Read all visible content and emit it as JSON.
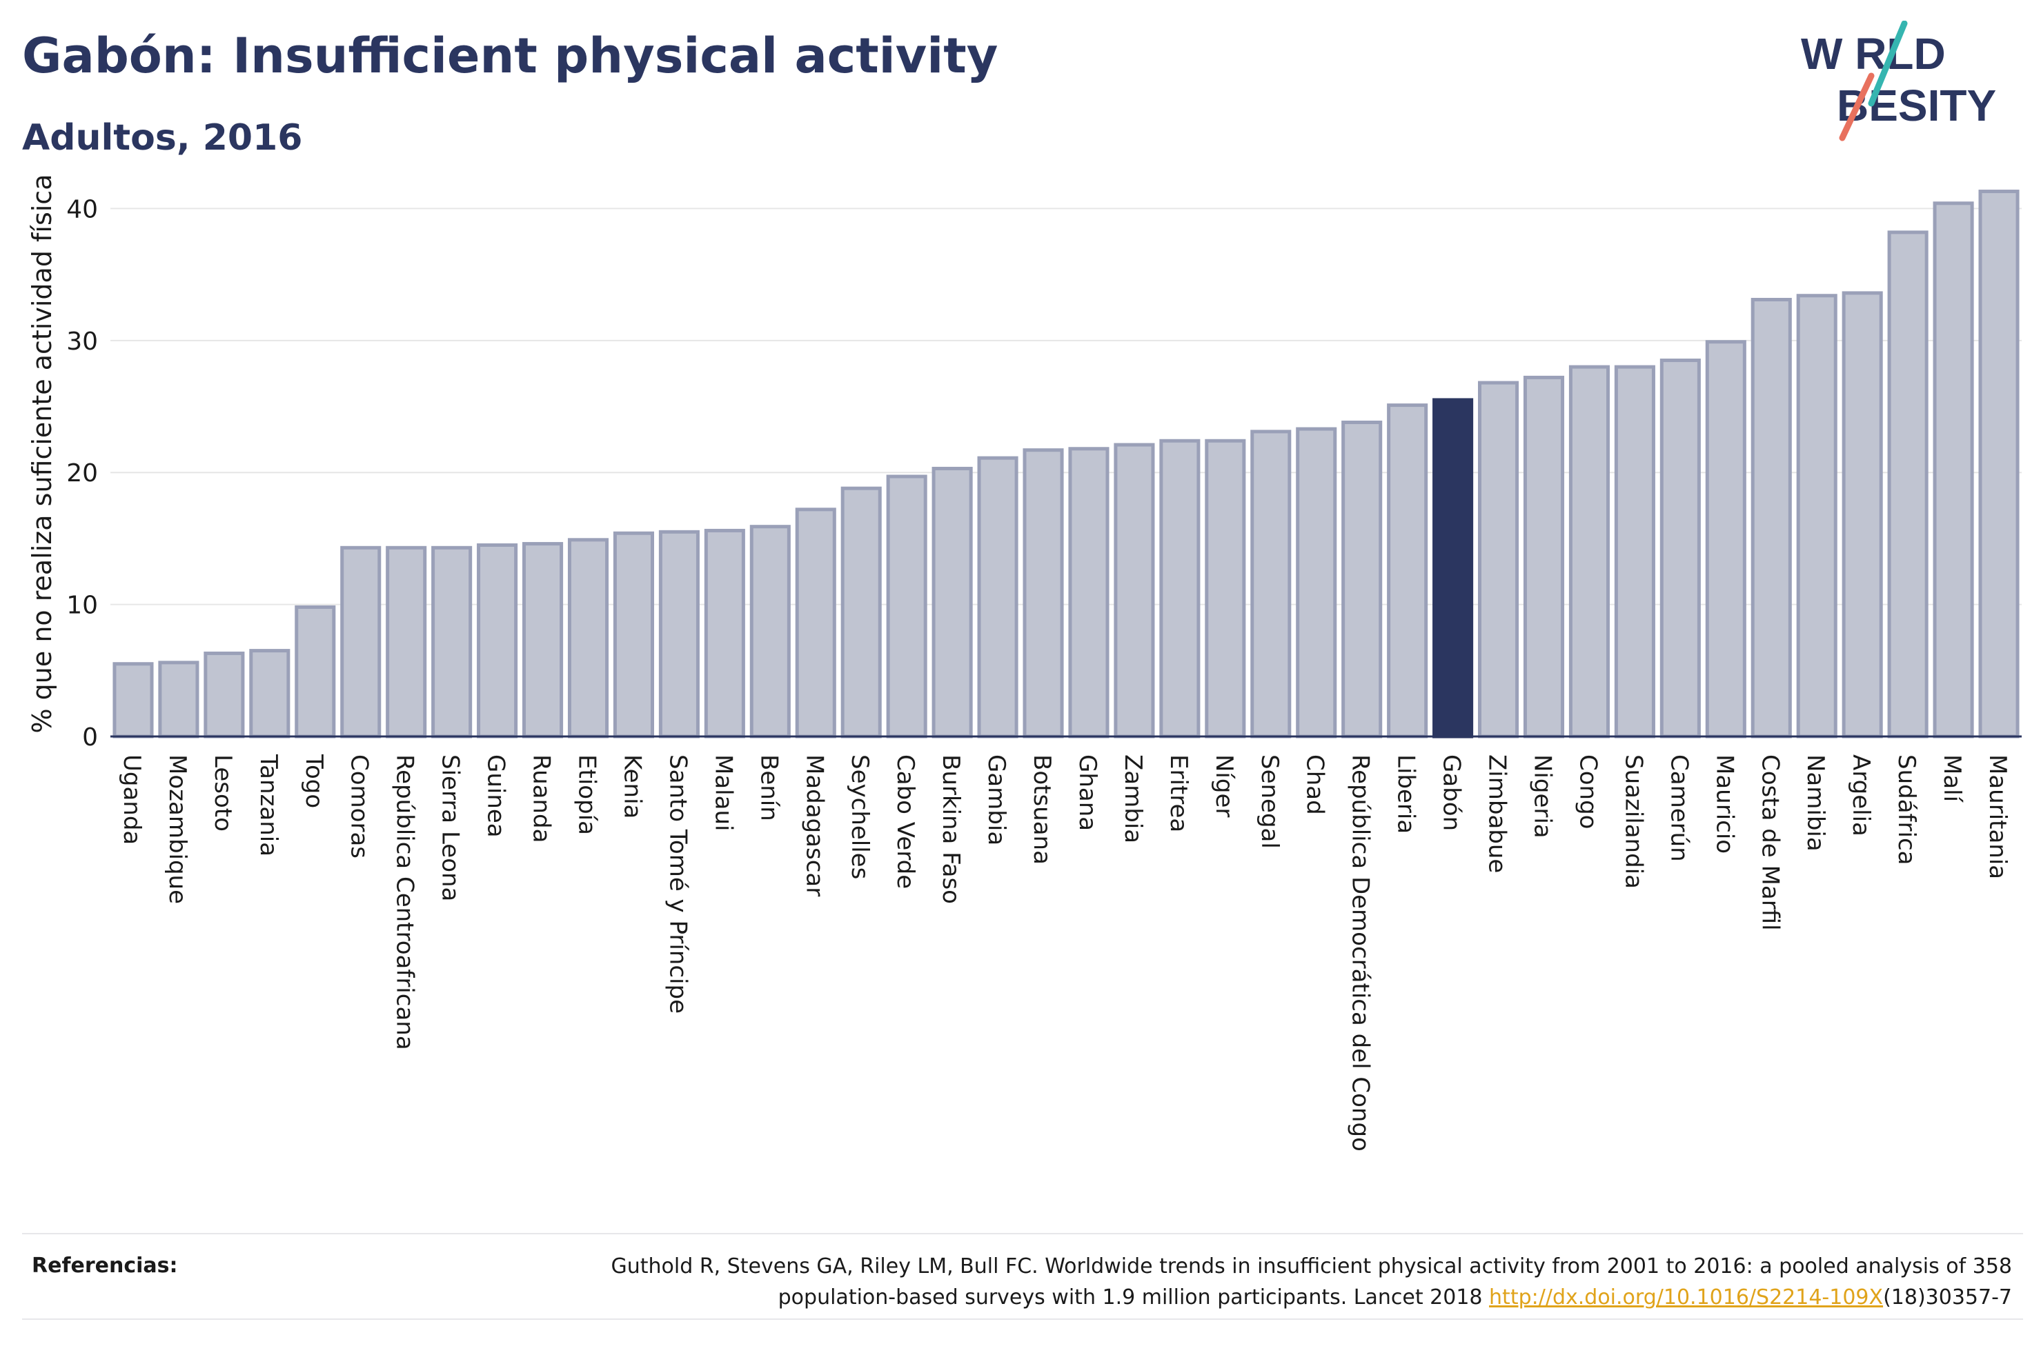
{
  "header": {
    "title": "Gabón: Insufficient physical activity",
    "subtitle": "Adultos, 2016"
  },
  "logo": {
    "line1": "W RLD",
    "line2": "BESITY",
    "accent_colors": [
      "#35b5b0",
      "#e8715e"
    ],
    "text_color": "#2b3660"
  },
  "colors": {
    "bar_default": "#c0c4d1",
    "bar_border": "#9aa0b8",
    "bar_highlight": "#2b3660",
    "grid": "#e6e6e6",
    "axis": "#2b3660"
  },
  "chart_data": {
    "type": "bar",
    "title": "Gabón: Insufficient physical activity",
    "subtitle": "Adultos, 2016",
    "ylabel": "% que no realiza suficiente actividad física",
    "xlabel": "",
    "ylim": [
      0,
      43
    ],
    "yticks": [
      0,
      10,
      20,
      30,
      40
    ],
    "grid": true,
    "highlight": "Gabón",
    "categories": [
      "Uganda",
      "Mozambique",
      "Lesoto",
      "Tanzania",
      "Togo",
      "Comoras",
      "República Centroafricana",
      "Sierra Leona",
      "Guinea",
      "Ruanda",
      "Etiopía",
      "Kenia",
      "Santo Tomé y Príncipe",
      "Malaui",
      "Benín",
      "Madagascar",
      "Seychelles",
      "Cabo Verde",
      "Burkina Faso",
      "Gambia",
      "Botsuana",
      "Ghana",
      "Zambia",
      "Eritrea",
      "Níger",
      "Senegal",
      "Chad",
      "República Democrática del Congo",
      "Liberia",
      "Gabón",
      "Zimbabue",
      "Nigeria",
      "Congo",
      "Suazilandia",
      "Camerún",
      "Mauricio",
      "Costa de Marfil",
      "Namibia",
      "Argelia",
      "Sudáfrica",
      "Malí",
      "Mauritania"
    ],
    "values": [
      5.5,
      5.6,
      6.3,
      6.5,
      9.8,
      14.3,
      14.3,
      14.3,
      14.5,
      14.6,
      14.9,
      15.4,
      15.5,
      15.6,
      15.9,
      17.2,
      18.8,
      19.7,
      20.3,
      21.1,
      21.7,
      21.8,
      22.1,
      22.4,
      22.4,
      23.1,
      23.3,
      23.8,
      25.1,
      25.5,
      26.8,
      27.2,
      28.0,
      28.0,
      28.5,
      29.9,
      33.1,
      33.4,
      33.6,
      38.2,
      40.4,
      41.3
    ]
  },
  "references": {
    "label": "Referencias:",
    "line1": "Guthold R, Stevens GA, Riley LM, Bull FC. Worldwide trends in insufficient physical activity from 2001 to 2016: a pooled analysis of 358",
    "line2_before": "population-based surveys with 1.9 million participants. Lancet 2018 ",
    "link": "http://dx.doi.org/10.1016/S2214-109X",
    "line2_after": "(18)30357-7"
  }
}
